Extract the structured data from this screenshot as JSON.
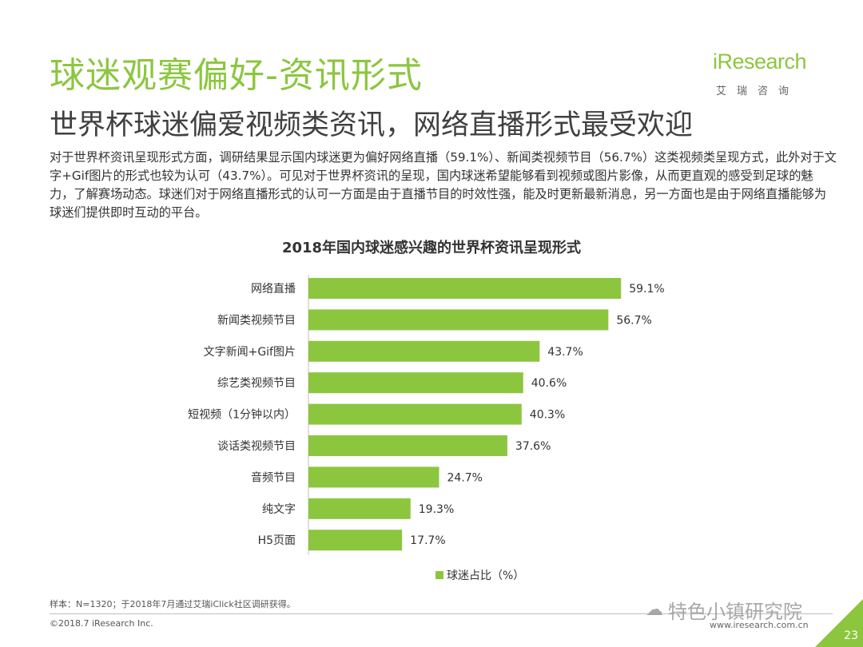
{
  "header": {
    "title": "球迷观赛偏好-资讯形式",
    "subtitle": "世界杯球迷偏爱视频类资讯，网络直播形式最受欢迎",
    "logo_text": "iResearch",
    "logo_sub": "艾瑞咨询"
  },
  "description": "对于世界杯资讯呈现形式方面，调研结果显示国内球迷更为偏好网络直播（59.1%）、新闻类视频节目（56.7%）这类视频类呈现方式，此外对于文字+Gif图片的形式也较为认可（43.7%）。可见对于世界杯资讯的呈现，国内球迷希望能够看到视频或图片影像，从而更直观的感受到足球的魅力，了解赛场动态。球迷们对于网络直播形式的认可一方面是由于直播节目的时效性强，能及时更新最新消息，另一方面也是由于网络直播能够为球迷们提供即时互动的平台。",
  "chart_data": {
    "type": "bar",
    "orientation": "horizontal",
    "title": "2018年国内球迷感兴趣的世界杯资讯呈现形式",
    "categories": [
      "网络直播",
      "新闻类视频节目",
      "文字新闻+Gif图片",
      "综艺类视频节目",
      "短视频（1分钟以内）",
      "谈话类视频节目",
      "音频节目",
      "纯文字",
      "H5页面"
    ],
    "series": [
      {
        "name": "球迷占比（%）",
        "values": [
          59.1,
          56.7,
          43.7,
          40.6,
          40.3,
          37.6,
          24.7,
          19.3,
          17.7
        ],
        "value_labels": [
          "59.1%",
          "56.7%",
          "43.7%",
          "40.6%",
          "40.3%",
          "37.6%",
          "24.7%",
          "19.3%",
          "17.7%"
        ]
      }
    ],
    "color": "#8cc63f",
    "legend_position": "bottom",
    "grid": false
  },
  "footer": {
    "footnote": "样本：N=1320；于2018年7月通过艾瑞iClick社区调研获得。",
    "copyright": "©2018.7 iResearch Inc.",
    "website": "www.iresearch.com.cn",
    "watermark": "特色小镇研究院",
    "page_number": "23"
  },
  "colors": {
    "accent": "#8cc63f",
    "page_tab": "#8cc63f"
  }
}
